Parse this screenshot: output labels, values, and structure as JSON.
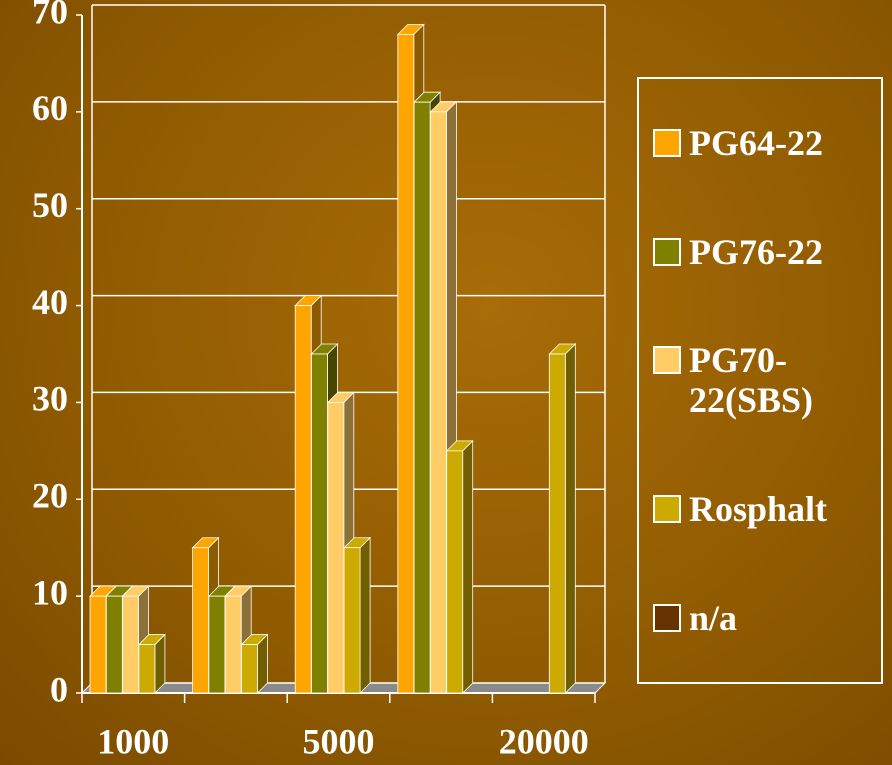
{
  "chart_data": {
    "type": "bar3d",
    "categories": [
      "1000",
      null,
      "5000",
      null,
      "20000"
    ],
    "series": [
      {
        "name": "PG64-22",
        "color": "#ffa500",
        "values": [
          10,
          15,
          40,
          68,
          null
        ]
      },
      {
        "name": "PG76-22",
        "color": "#808000",
        "values": [
          10,
          10,
          35,
          61,
          null
        ]
      },
      {
        "name": "PG70-22(SBS)",
        "color": "#ffcc66",
        "values": [
          10,
          10,
          30,
          60,
          null
        ]
      },
      {
        "name": "Rosphalt",
        "color": "#ccaa00",
        "values": [
          5,
          5,
          15,
          25,
          35
        ]
      },
      {
        "name": "n/a",
        "color": "#663300",
        "values": [
          null,
          null,
          null,
          null,
          null
        ]
      }
    ],
    "ylim": [
      0,
      70
    ],
    "yticks": [
      0,
      10,
      20,
      30,
      40,
      50,
      60,
      70
    ],
    "grid": true,
    "legend": "right"
  }
}
